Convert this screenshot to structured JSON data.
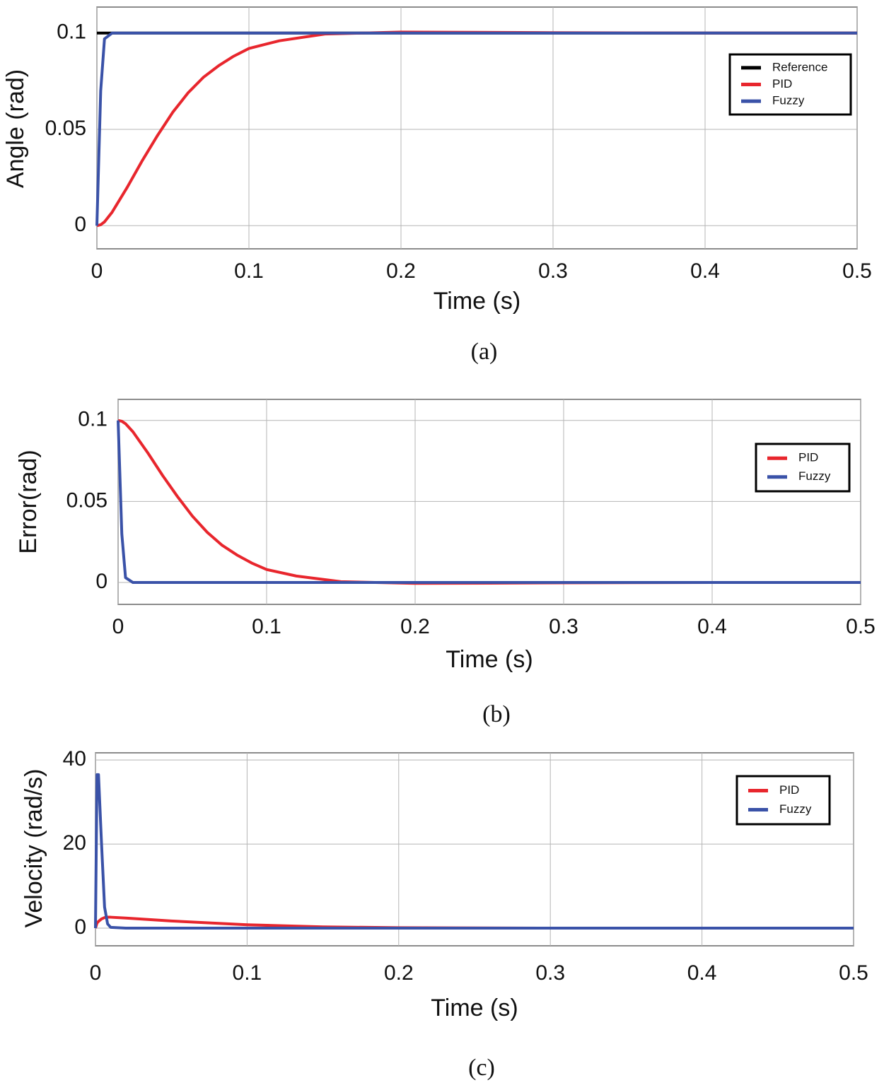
{
  "chart_data": [
    {
      "type": "line",
      "caption": "(a)",
      "xlabel": "Time (s)",
      "ylabel": "Angle (rad)",
      "x": [
        0,
        0.0025,
        0.005,
        0.01,
        0.02,
        0.03,
        0.04,
        0.05,
        0.06,
        0.07,
        0.08,
        0.09,
        0.1,
        0.12,
        0.15,
        0.2,
        0.25,
        0.3,
        0.4,
        0.5
      ],
      "series": [
        {
          "name": "Reference",
          "color": "#000000",
          "values": [
            0.1,
            0.1,
            0.1,
            0.1,
            0.1,
            0.1,
            0.1,
            0.1,
            0.1,
            0.1,
            0.1,
            0.1,
            0.1,
            0.1,
            0.1,
            0.1,
            0.1,
            0.1,
            0.1,
            0.1
          ]
        },
        {
          "name": "PID",
          "color": "#e8262d",
          "values": [
            0,
            0.0005,
            0.002,
            0.007,
            0.02,
            0.034,
            0.047,
            0.059,
            0.069,
            0.077,
            0.083,
            0.088,
            0.092,
            0.096,
            0.0995,
            0.1005,
            0.1004,
            0.1002,
            0.1,
            0.1
          ]
        },
        {
          "name": "Fuzzy",
          "color": "#3a52a8",
          "values": [
            0,
            0.07,
            0.097,
            0.1,
            0.1,
            0.1,
            0.1,
            0.1,
            0.1,
            0.1,
            0.1,
            0.1,
            0.1,
            0.1,
            0.1,
            0.1,
            0.1,
            0.1,
            0.1,
            0.1
          ]
        }
      ],
      "xlim": [
        0,
        0.5
      ],
      "xticks": [
        0,
        0.1,
        0.2,
        0.3,
        0.4,
        0.5
      ],
      "ylim": [
        -0.012,
        0.1135
      ],
      "yticks": [
        0,
        0.05,
        0.1
      ],
      "grid": true,
      "legend": "upper right"
    },
    {
      "type": "line",
      "caption": "(b)",
      "xlabel": "Time (s)",
      "ylabel": "Error(rad)",
      "x": [
        0,
        0.0025,
        0.005,
        0.01,
        0.02,
        0.03,
        0.04,
        0.05,
        0.06,
        0.07,
        0.08,
        0.09,
        0.1,
        0.12,
        0.15,
        0.2,
        0.25,
        0.3,
        0.4,
        0.5
      ],
      "series": [
        {
          "name": "PID",
          "color": "#e8262d",
          "values": [
            0.1,
            0.0995,
            0.098,
            0.093,
            0.08,
            0.066,
            0.053,
            0.041,
            0.031,
            0.023,
            0.017,
            0.012,
            0.008,
            0.004,
            0.0005,
            -0.0005,
            -0.0004,
            -0.0002,
            0,
            0
          ]
        },
        {
          "name": "Fuzzy",
          "color": "#3a52a8",
          "values": [
            0.1,
            0.03,
            0.003,
            0,
            0,
            0,
            0,
            0,
            0,
            0,
            0,
            0,
            0,
            0,
            0,
            0,
            0,
            0,
            0,
            0
          ]
        }
      ],
      "xlim": [
        0,
        0.5
      ],
      "xticks": [
        0,
        0.1,
        0.2,
        0.3,
        0.4,
        0.5
      ],
      "ylim": [
        -0.0135,
        0.113
      ],
      "yticks": [
        0,
        0.05,
        0.1
      ],
      "grid": true,
      "legend": "upper right"
    },
    {
      "type": "line",
      "caption": "(c)",
      "xlabel": "Time (s)",
      "ylabel": "Velocity (rad/s)",
      "x": [
        0,
        0.001,
        0.002,
        0.004,
        0.006,
        0.008,
        0.01,
        0.02,
        0.05,
        0.1,
        0.15,
        0.2,
        0.3,
        0.4,
        0.5
      ],
      "series": [
        {
          "name": "PID",
          "color": "#e8262d",
          "values": [
            0,
            1.2,
            1.6,
            2.2,
            2.5,
            2.6,
            2.6,
            2.4,
            1.7,
            0.8,
            0.3,
            0.1,
            0,
            0,
            0
          ]
        },
        {
          "name": "Fuzzy",
          "color": "#3a52a8",
          "values": [
            0,
            36.5,
            36.5,
            20,
            5,
            1,
            0.2,
            0,
            0,
            0,
            0,
            0,
            0,
            0,
            0
          ]
        }
      ],
      "xlim": [
        0,
        0.5
      ],
      "xticks": [
        0,
        0.1,
        0.2,
        0.3,
        0.4,
        0.5
      ],
      "ylim": [
        -4.2,
        41.7
      ],
      "yticks": [
        0,
        20,
        40
      ],
      "grid": true,
      "legend": "upper right"
    }
  ]
}
